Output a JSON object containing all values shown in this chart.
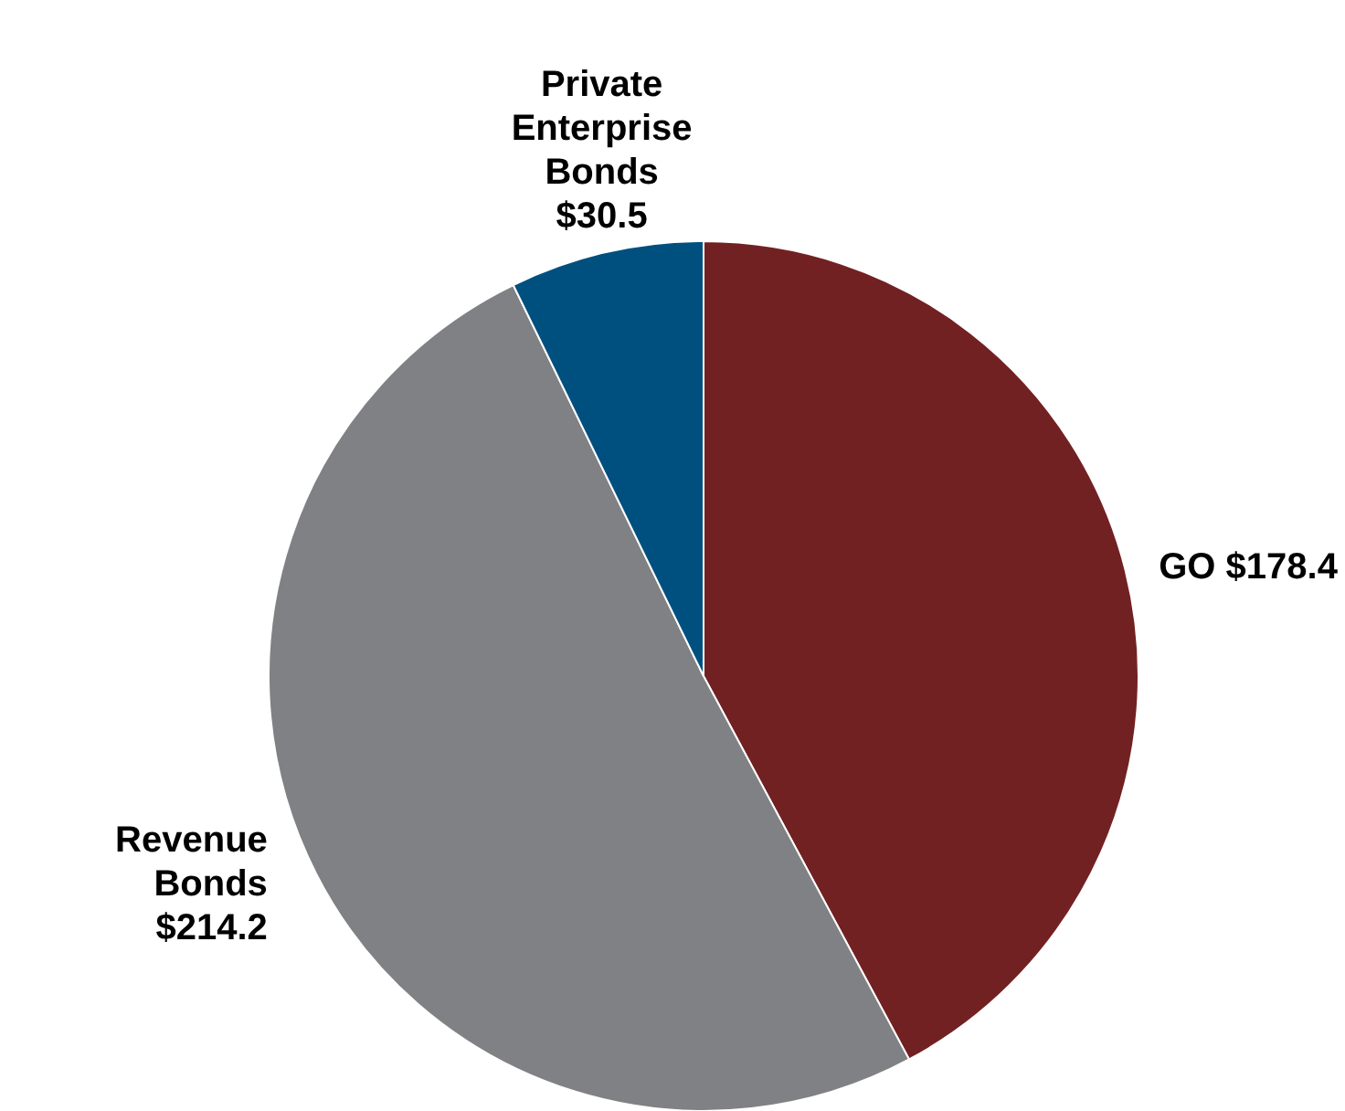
{
  "chart_data": {
    "type": "pie",
    "categories": [
      "GO",
      "Revenue Bonds",
      "Private Enterprise Bonds"
    ],
    "values": [
      178.4,
      214.2,
      30.5
    ],
    "value_labels": [
      "$178.4",
      "$214.2",
      "$30.5"
    ],
    "colors": [
      "#722123",
      "#808184",
      "#00507f"
    ]
  }
}
